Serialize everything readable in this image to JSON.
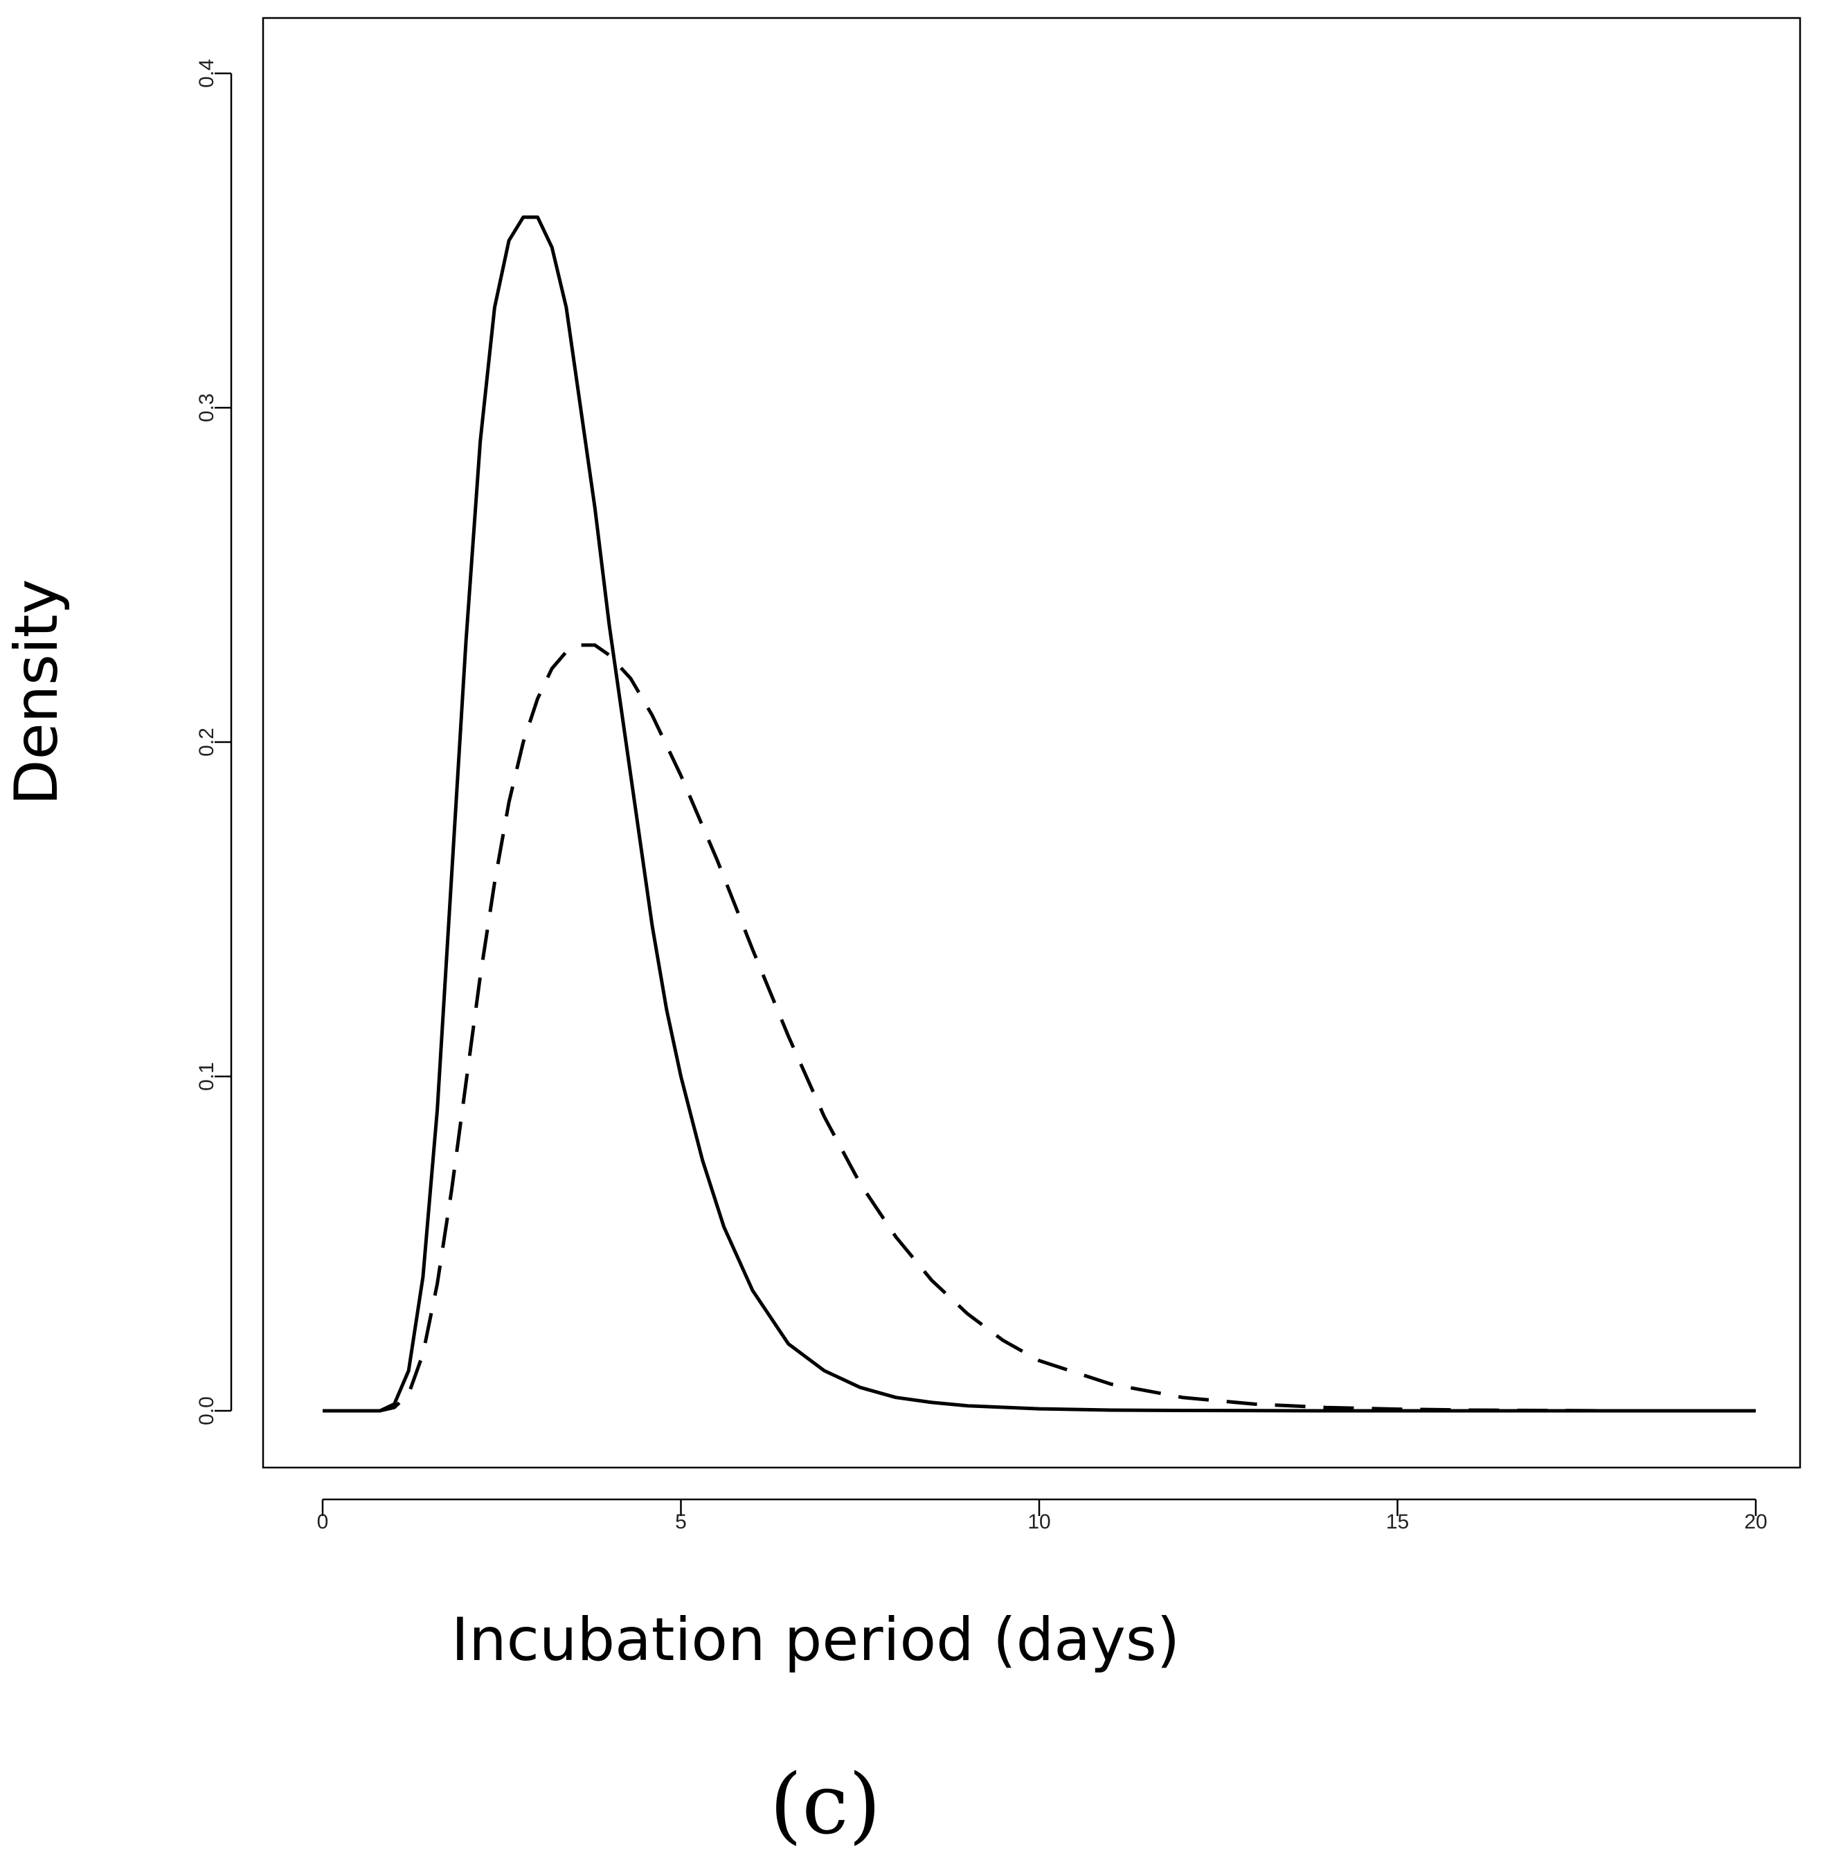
{
  "chart_data": {
    "type": "line",
    "title": "",
    "xlabel": "Incubation period (days)",
    "ylabel": "Density",
    "panel_label": "(c)",
    "xlim": [
      0,
      20
    ],
    "ylim": [
      0,
      0.4
    ],
    "xticks": [
      0,
      5,
      10,
      15,
      20
    ],
    "xtick_labels": [
      "0",
      "5",
      "10",
      "15",
      "20"
    ],
    "yticks": [
      0,
      0.1,
      0.2,
      0.3,
      0.4
    ],
    "ytick_labels": [
      "0.0",
      "0.1",
      "0.2",
      "0.3",
      "0.4"
    ],
    "grid": false,
    "legend": "none",
    "series": [
      {
        "name": "solid",
        "style": "solid",
        "x": [
          0,
          0.5,
          0.8,
          1.0,
          1.2,
          1.4,
          1.6,
          1.8,
          2.0,
          2.2,
          2.4,
          2.6,
          2.8,
          3.0,
          3.2,
          3.4,
          3.6,
          3.8,
          4.0,
          4.2,
          4.4,
          4.6,
          4.8,
          5.0,
          5.3,
          5.6,
          6.0,
          6.5,
          7.0,
          7.5,
          8.0,
          8.5,
          9.0,
          10.0,
          11.0,
          12.0,
          14.0,
          16.0,
          18.0,
          20.0
        ],
        "values": [
          0,
          0,
          0,
          0.002,
          0.012,
          0.04,
          0.09,
          0.16,
          0.23,
          0.29,
          0.33,
          0.35,
          0.357,
          0.357,
          0.348,
          0.33,
          0.3,
          0.27,
          0.235,
          0.205,
          0.175,
          0.145,
          0.12,
          0.1,
          0.075,
          0.055,
          0.036,
          0.02,
          0.012,
          0.007,
          0.004,
          0.0025,
          0.0015,
          0.0006,
          0.0002,
          0.0001,
          0,
          0,
          0,
          0
        ]
      },
      {
        "name": "dashed",
        "style": "dashed",
        "x": [
          0,
          0.5,
          0.8,
          1.0,
          1.2,
          1.4,
          1.6,
          1.8,
          2.0,
          2.2,
          2.4,
          2.6,
          2.8,
          3.0,
          3.2,
          3.4,
          3.6,
          3.8,
          4.0,
          4.3,
          4.6,
          5.0,
          5.5,
          6.0,
          6.5,
          7.0,
          7.5,
          8.0,
          8.5,
          9.0,
          9.5,
          10.0,
          11.0,
          12.0,
          13.0,
          14.0,
          15.0,
          16.0,
          17.0,
          18.0,
          20.0
        ],
        "values": [
          0,
          0,
          0,
          0.001,
          0.005,
          0.017,
          0.038,
          0.066,
          0.098,
          0.13,
          0.158,
          0.182,
          0.2,
          0.213,
          0.222,
          0.227,
          0.229,
          0.229,
          0.226,
          0.219,
          0.208,
          0.19,
          0.165,
          0.138,
          0.112,
          0.088,
          0.068,
          0.052,
          0.039,
          0.029,
          0.021,
          0.015,
          0.008,
          0.004,
          0.002,
          0.001,
          0.0005,
          0.0002,
          0.0001,
          0,
          0
        ]
      }
    ]
  }
}
